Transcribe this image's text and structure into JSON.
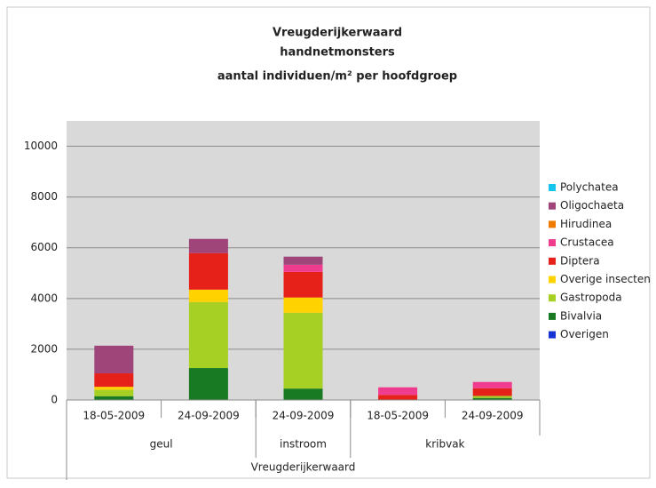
{
  "chart_data": {
    "type": "stacked_bar",
    "title": [
      "Vreugderijkerwaard",
      "handnetmonsters",
      "aantal individuen/m² per hoofdgroep"
    ],
    "categories": [
      "18-05-2009",
      "24-09-2009",
      "24-09-2009",
      "18-05-2009",
      "24-09-2009"
    ],
    "category_groups": [
      {
        "name": "geul",
        "size": 2
      },
      {
        "name": "instroom",
        "size": 1
      },
      {
        "name": "kribvak",
        "size": 2
      }
    ],
    "outer_group": "Vreugderijkerwaard",
    "series": [
      {
        "name": "Overigen",
        "color": "#1632d2",
        "values": [
          0,
          0,
          0,
          0,
          0
        ]
      },
      {
        "name": "Bivalvia",
        "color": "#187a22",
        "values": [
          150,
          1260,
          450,
          0,
          80
        ]
      },
      {
        "name": "Gastropoda",
        "color": "#a6d024",
        "values": [
          250,
          2600,
          2990,
          0,
          80
        ]
      },
      {
        "name": "Overige insecten",
        "color": "#ffd200",
        "values": [
          120,
          490,
          600,
          0,
          0
        ]
      },
      {
        "name": "Diptera",
        "color": "#e62119",
        "values": [
          530,
          1440,
          1010,
          200,
          300
        ]
      },
      {
        "name": "Crustacea",
        "color": "#f03c8e",
        "values": [
          0,
          0,
          280,
          300,
          250
        ]
      },
      {
        "name": "Hirudinea",
        "color": "#f07a00",
        "values": [
          0,
          0,
          0,
          0,
          0
        ]
      },
      {
        "name": "Oligochaeta",
        "color": "#a0457a",
        "values": [
          1090,
          560,
          320,
          0,
          0
        ]
      },
      {
        "name": "Polychatea",
        "color": "#12c4ee",
        "values": [
          0,
          0,
          0,
          0,
          0
        ]
      }
    ],
    "ylim": [
      0,
      11000
    ],
    "yticks": [
      0,
      2000,
      4000,
      6000,
      8000,
      10000
    ],
    "grid": true,
    "legend": "right"
  }
}
